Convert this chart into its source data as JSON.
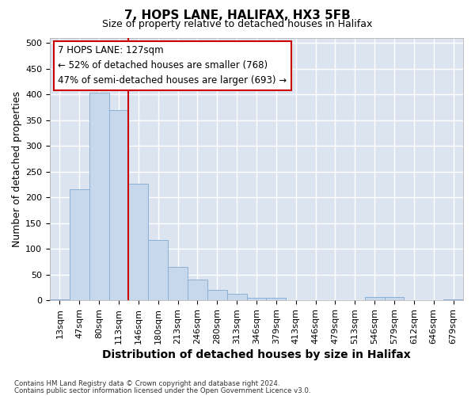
{
  "title1": "7, HOPS LANE, HALIFAX, HX3 5FB",
  "title2": "Size of property relative to detached houses in Halifax",
  "xlabel": "Distribution of detached houses by size in Halifax",
  "ylabel": "Number of detached properties",
  "bar_labels": [
    "13sqm",
    "47sqm",
    "80sqm",
    "113sqm",
    "146sqm",
    "180sqm",
    "213sqm",
    "246sqm",
    "280sqm",
    "313sqm",
    "346sqm",
    "379sqm",
    "413sqm",
    "446sqm",
    "479sqm",
    "513sqm",
    "546sqm",
    "579sqm",
    "612sqm",
    "646sqm",
    "679sqm"
  ],
  "bar_values": [
    2,
    215,
    403,
    370,
    227,
    117,
    65,
    40,
    20,
    13,
    5,
    5,
    1,
    1,
    1,
    1,
    6,
    6,
    1,
    1,
    2
  ],
  "bar_color": "#c8d8ec",
  "bar_edgecolor": "#8ab0d4",
  "plot_bg_color": "#dce4f0",
  "fig_bg_color": "#ffffff",
  "grid_color": "#ffffff",
  "annotation_text_line1": "7 HOPS LANE: 127sqm",
  "annotation_text_line2": "← 52% of detached houses are smaller (768)",
  "annotation_text_line3": "47% of semi-detached houses are larger (693) →",
  "annotation_box_facecolor": "#ffffff",
  "annotation_box_edgecolor": "#cc0000",
  "vline_color": "#cc0000",
  "vline_x": 3.5,
  "ylim_max": 510,
  "yticks": [
    0,
    50,
    100,
    150,
    200,
    250,
    300,
    350,
    400,
    450,
    500
  ],
  "title1_fontsize": 11,
  "title2_fontsize": 9,
  "xlabel_fontsize": 10,
  "ylabel_fontsize": 9,
  "tick_fontsize": 8,
  "footer_line1": "Contains HM Land Registry data © Crown copyright and database right 2024.",
  "footer_line2": "Contains public sector information licensed under the Open Government Licence v3.0."
}
